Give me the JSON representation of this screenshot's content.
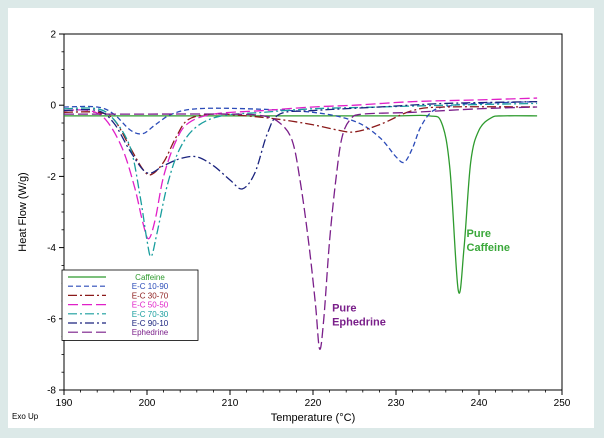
{
  "chart_data": {
    "type": "line",
    "xlabel": "Temperature (°C)",
    "ylabel": "Heat Flow (W/g)",
    "corner_note": "Exo Up",
    "xlim": [
      190,
      250
    ],
    "ylim": [
      -8,
      2
    ],
    "xticks": [
      "190",
      "200",
      "210",
      "220",
      "230",
      "240",
      "250"
    ],
    "yticks": [
      "2",
      "0",
      "-2",
      "-4",
      "-6",
      "-8"
    ],
    "grid": false,
    "legend_position": "lower-left",
    "series": [
      {
        "name": "Caffeine",
        "color": "#2e9b2e",
        "dash": "solid",
        "points": [
          [
            190,
            -0.3
          ],
          [
            200,
            -0.3
          ],
          [
            210,
            -0.3
          ],
          [
            220,
            -0.3
          ],
          [
            230,
            -0.3
          ],
          [
            234,
            -0.3
          ],
          [
            235.5,
            -0.5
          ],
          [
            236.5,
            -1.8
          ],
          [
            237.5,
            -5.2
          ],
          [
            238.2,
            -4.0
          ],
          [
            239,
            -1.6
          ],
          [
            240,
            -0.7
          ],
          [
            241.5,
            -0.35
          ],
          [
            243,
            -0.3
          ],
          [
            247,
            -0.3
          ]
        ]
      },
      {
        "name": "E-C 10-90",
        "color": "#2b4bb8",
        "dash": "dashed",
        "points": [
          [
            190,
            -0.05
          ],
          [
            194,
            -0.05
          ],
          [
            196,
            -0.25
          ],
          [
            198,
            -0.7
          ],
          [
            199.5,
            -0.8
          ],
          [
            201,
            -0.55
          ],
          [
            203,
            -0.25
          ],
          [
            206,
            -0.1
          ],
          [
            212,
            -0.1
          ],
          [
            220,
            -0.2
          ],
          [
            225,
            -0.45
          ],
          [
            228,
            -0.9
          ],
          [
            230,
            -1.45
          ],
          [
            231,
            -1.6
          ],
          [
            232,
            -1.2
          ],
          [
            233,
            -0.6
          ],
          [
            234.5,
            -0.15
          ],
          [
            237,
            0.0
          ],
          [
            240,
            0.05
          ],
          [
            247,
            0.1
          ]
        ]
      },
      {
        "name": "E-C 30-70",
        "color": "#8b1a1a",
        "dash": "dashdot",
        "points": [
          [
            190,
            -0.2
          ],
          [
            194,
            -0.2
          ],
          [
            196,
            -0.4
          ],
          [
            198,
            -1.2
          ],
          [
            199.5,
            -1.8
          ],
          [
            200.5,
            -1.95
          ],
          [
            202,
            -1.6
          ],
          [
            203.5,
            -0.9
          ],
          [
            205,
            -0.4
          ],
          [
            208,
            -0.25
          ],
          [
            212,
            -0.3
          ],
          [
            216,
            -0.4
          ],
          [
            220,
            -0.55
          ],
          [
            223,
            -0.7
          ],
          [
            225,
            -0.75
          ],
          [
            228,
            -0.55
          ],
          [
            232,
            -0.15
          ],
          [
            236,
            -0.05
          ],
          [
            247,
            -0.05
          ]
        ]
      },
      {
        "name": "E-C 50-50",
        "color": "#e020c8",
        "dash": "longdash",
        "points": [
          [
            190,
            -0.15
          ],
          [
            193,
            -0.15
          ],
          [
            195,
            -0.4
          ],
          [
            197,
            -1.2
          ],
          [
            198.5,
            -2.3
          ],
          [
            199.5,
            -3.3
          ],
          [
            200.2,
            -3.75
          ],
          [
            201,
            -3.2
          ],
          [
            202,
            -2.0
          ],
          [
            203.5,
            -1.0
          ],
          [
            205,
            -0.5
          ],
          [
            208,
            -0.25
          ],
          [
            214,
            -0.15
          ],
          [
            220,
            -0.05
          ],
          [
            225,
            0.0
          ],
          [
            232,
            0.1
          ],
          [
            240,
            0.15
          ],
          [
            247,
            0.2
          ]
        ]
      },
      {
        "name": "E-C 70-30",
        "color": "#1a9e9e",
        "dash": "dashdot",
        "points": [
          [
            190,
            -0.1
          ],
          [
            194,
            -0.1
          ],
          [
            196,
            -0.4
          ],
          [
            198,
            -1.2
          ],
          [
            199.2,
            -2.6
          ],
          [
            200,
            -3.8
          ],
          [
            200.5,
            -4.25
          ],
          [
            201.2,
            -3.6
          ],
          [
            202.5,
            -2.2
          ],
          [
            204,
            -1.2
          ],
          [
            206,
            -0.6
          ],
          [
            209,
            -0.3
          ],
          [
            214,
            -0.2
          ],
          [
            220,
            -0.1
          ],
          [
            228,
            -0.05
          ],
          [
            236,
            0.0
          ],
          [
            247,
            0.05
          ]
        ]
      },
      {
        "name": "E-C 90-10",
        "color": "#1a237e",
        "dash": "dashdot",
        "points": [
          [
            190,
            -0.15
          ],
          [
            194,
            -0.15
          ],
          [
            196,
            -0.5
          ],
          [
            198,
            -1.3
          ],
          [
            200,
            -1.9
          ],
          [
            202,
            -1.7
          ],
          [
            204,
            -1.5
          ],
          [
            206,
            -1.45
          ],
          [
            208,
            -1.7
          ],
          [
            210,
            -2.1
          ],
          [
            211.5,
            -2.35
          ],
          [
            213,
            -1.9
          ],
          [
            214.5,
            -0.8
          ],
          [
            216,
            -0.25
          ],
          [
            220,
            -0.15
          ],
          [
            228,
            -0.05
          ],
          [
            236,
            0.05
          ],
          [
            247,
            0.1
          ]
        ]
      },
      {
        "name": "Ephedrine",
        "color": "#7a1f8a",
        "dash": "longdash",
        "points": [
          [
            190,
            -0.25
          ],
          [
            200,
            -0.25
          ],
          [
            210,
            -0.25
          ],
          [
            214,
            -0.3
          ],
          [
            216,
            -0.5
          ],
          [
            217.5,
            -1.0
          ],
          [
            218.5,
            -2.2
          ],
          [
            219.5,
            -3.9
          ],
          [
            220.3,
            -5.6
          ],
          [
            220.8,
            -6.85
          ],
          [
            221.3,
            -6.0
          ],
          [
            222,
            -3.8
          ],
          [
            222.8,
            -2.0
          ],
          [
            223.5,
            -0.9
          ],
          [
            224.5,
            -0.4
          ],
          [
            226,
            -0.25
          ],
          [
            232,
            -0.2
          ],
          [
            240,
            -0.1
          ],
          [
            247,
            -0.05
          ]
        ]
      }
    ],
    "annotations": [
      {
        "text": "Pure Caffeine",
        "lines": [
          "Pure",
          "Caffeine"
        ],
        "color": "#3aa83a",
        "at": [
          238.5,
          -3.7
        ]
      },
      {
        "text": "Pure Ephedrine",
        "lines": [
          "Pure",
          "Ephedrine"
        ],
        "color": "#7a1f8a",
        "at": [
          222.3,
          -5.8
        ]
      }
    ]
  }
}
